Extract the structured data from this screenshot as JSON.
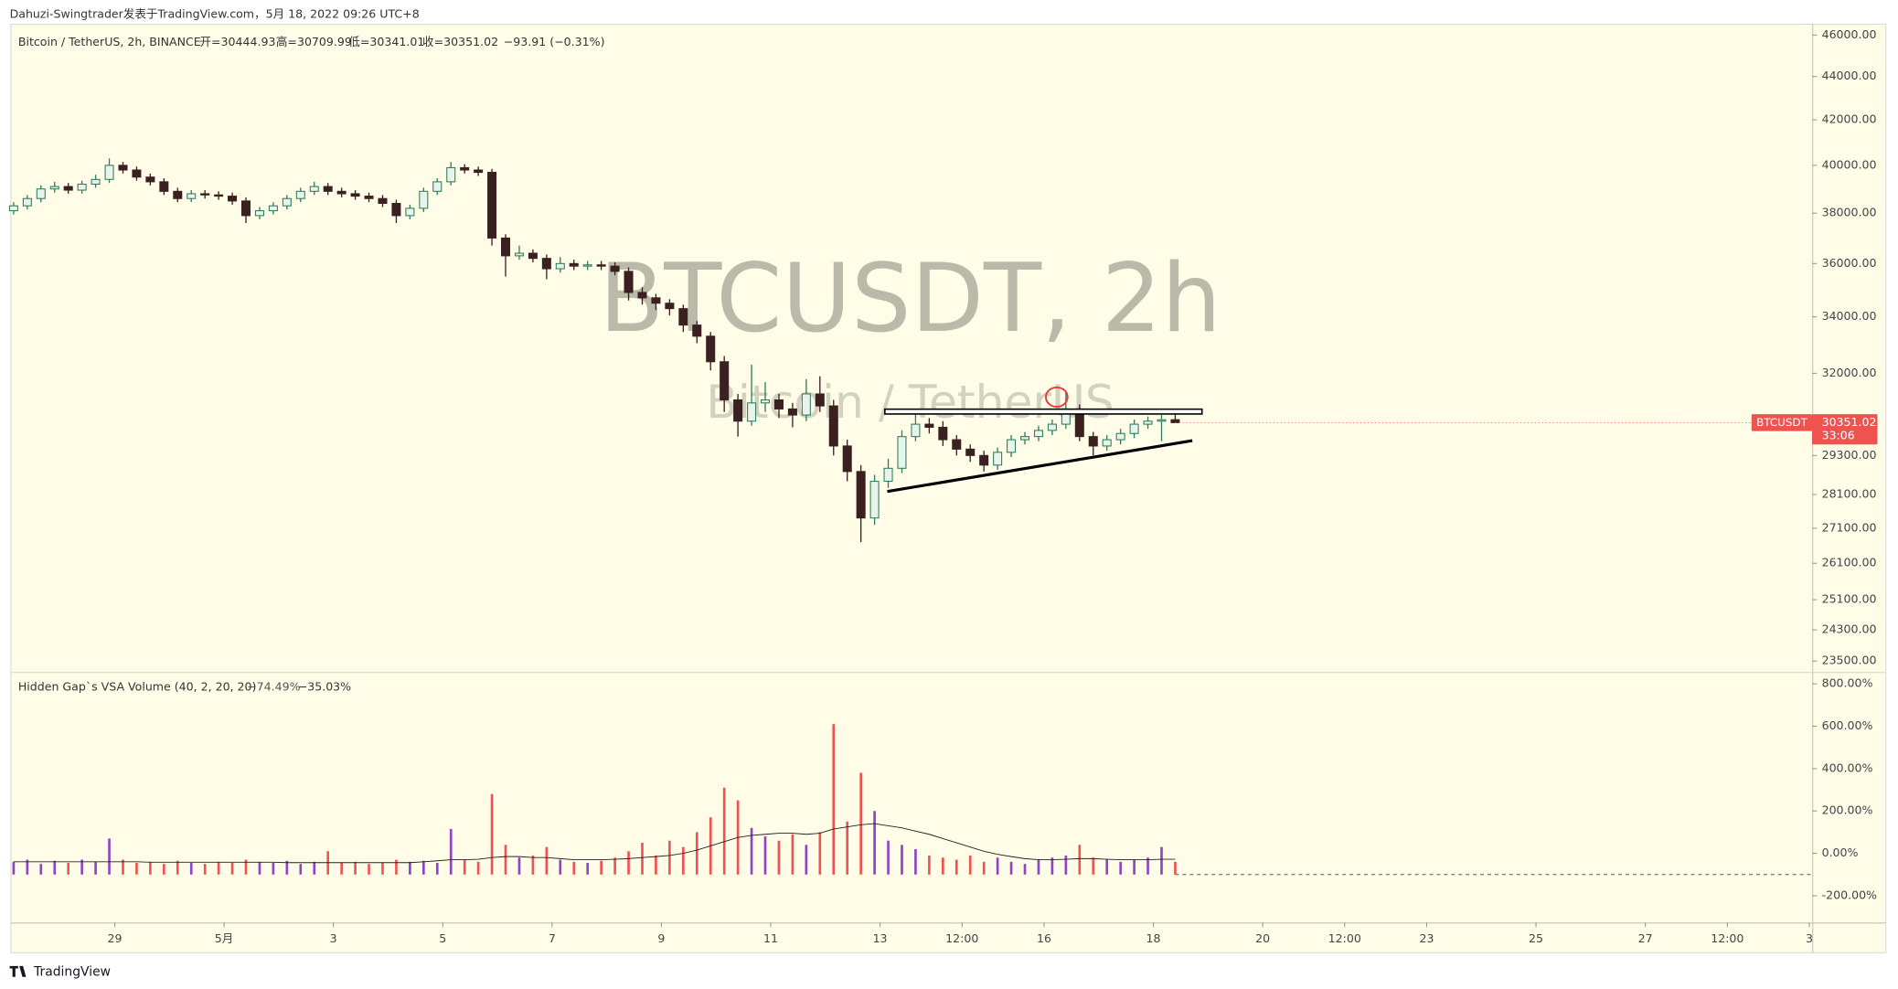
{
  "header": "Dahuzi-Swingtrader发表于TradingView.com，5月 18, 2022 09:26 UTC+8",
  "footer": "TradingView",
  "chart_data": {
    "type": "candlestick",
    "legend": {
      "symbol": "Bitcoin / TetherUS, 2h, BINANCE",
      "open": "开=30444.93",
      "high": "高=30709.99",
      "low": "低=30341.01",
      "close": "收=30351.02",
      "change": "−93.91 (−0.31%)"
    },
    "watermark": "BTCUSDT, 2h",
    "watermark_sub": "Bitcoin / TetherUS",
    "xlim": [
      0.1,
      33.05
    ],
    "xticks": [
      {
        "value": 2,
        "label": "29"
      },
      {
        "value": 4,
        "label": "5月"
      },
      {
        "value": 6,
        "label": "3"
      },
      {
        "value": 8,
        "label": "5"
      },
      {
        "value": 10,
        "label": "7"
      },
      {
        "value": 12,
        "label": "9"
      },
      {
        "value": 14,
        "label": "11"
      },
      {
        "value": 16,
        "label": "13"
      },
      {
        "value": 17.5,
        "label": "12:00"
      },
      {
        "value": 19,
        "label": "16"
      },
      {
        "value": 21,
        "label": "18"
      },
      {
        "value": 23,
        "label": "20"
      },
      {
        "value": 24.5,
        "label": "12:00"
      },
      {
        "value": 26,
        "label": "23"
      },
      {
        "value": 28,
        "label": "25"
      },
      {
        "value": 30,
        "label": "27"
      },
      {
        "value": 31.5,
        "label": "12:00"
      },
      {
        "value": 33,
        "label": "3"
      }
    ],
    "ylim": [
      23230,
      46540
    ],
    "log": true,
    "grid": false,
    "yticks": [
      {
        "value": 46000,
        "label": "46000.00"
      },
      {
        "value": 44000,
        "label": "44000.00"
      },
      {
        "value": 42000,
        "label": "42000.00"
      },
      {
        "value": 40000,
        "label": "40000.00"
      },
      {
        "value": 38000,
        "label": "38000.00"
      },
      {
        "value": 36000,
        "label": "36000.00"
      },
      {
        "value": 34000,
        "label": "34000.00"
      },
      {
        "value": 32000,
        "label": "32000.00"
      },
      {
        "value": 29300,
        "label": "29300.00"
      },
      {
        "value": 28100,
        "label": "28100.00"
      },
      {
        "value": 27100,
        "label": "27100.00"
      },
      {
        "value": 26100,
        "label": "26100.00"
      },
      {
        "value": 25100,
        "label": "25100.00"
      },
      {
        "value": 24300,
        "label": "24300.00"
      },
      {
        "value": 23500,
        "label": "23500.00"
      }
    ],
    "up_color": "#2e7d5b",
    "down_color": "#3a2020",
    "candles": [
      [
        0.15,
        38100,
        38450,
        37950,
        38300
      ],
      [
        0.4,
        38300,
        38750,
        38150,
        38600
      ],
      [
        0.65,
        38600,
        39150,
        38450,
        39000
      ],
      [
        0.9,
        39000,
        39300,
        38850,
        39100
      ],
      [
        1.15,
        39100,
        39250,
        38800,
        38950
      ],
      [
        1.4,
        38950,
        39350,
        38800,
        39200
      ],
      [
        1.65,
        39200,
        39600,
        39050,
        39400
      ],
      [
        1.9,
        39400,
        40300,
        39250,
        40000
      ],
      [
        2.15,
        40000,
        40150,
        39650,
        39800
      ],
      [
        2.4,
        39800,
        39950,
        39350,
        39500
      ],
      [
        2.65,
        39500,
        39650,
        39150,
        39300
      ],
      [
        2.9,
        39300,
        39450,
        38750,
        38900
      ],
      [
        3.15,
        38900,
        39050,
        38450,
        38600
      ],
      [
        3.4,
        38600,
        38950,
        38450,
        38800
      ],
      [
        3.65,
        38800,
        38950,
        38600,
        38750
      ],
      [
        3.9,
        38750,
        38900,
        38550,
        38700
      ],
      [
        4.15,
        38700,
        38850,
        38350,
        38500
      ],
      [
        4.4,
        38500,
        38650,
        37600,
        37900
      ],
      [
        4.65,
        37900,
        38250,
        37750,
        38100
      ],
      [
        4.9,
        38100,
        38450,
        37950,
        38300
      ],
      [
        5.15,
        38300,
        38750,
        38150,
        38600
      ],
      [
        5.4,
        38600,
        39050,
        38450,
        38900
      ],
      [
        5.65,
        38900,
        39300,
        38750,
        39100
      ],
      [
        5.9,
        39100,
        39250,
        38750,
        38900
      ],
      [
        6.15,
        38900,
        39050,
        38650,
        38800
      ],
      [
        6.4,
        38800,
        38950,
        38550,
        38700
      ],
      [
        6.65,
        38700,
        38850,
        38450,
        38600
      ],
      [
        6.9,
        38600,
        38750,
        38250,
        38400
      ],
      [
        7.15,
        38400,
        38550,
        37600,
        37900
      ],
      [
        7.4,
        37900,
        38350,
        37750,
        38200
      ],
      [
        7.65,
        38200,
        39050,
        38050,
        38900
      ],
      [
        7.9,
        38900,
        39450,
        38750,
        39300
      ],
      [
        8.15,
        39300,
        40150,
        39150,
        39900
      ],
      [
        8.4,
        39900,
        40050,
        39650,
        39800
      ],
      [
        8.65,
        39800,
        39950,
        39550,
        39700
      ],
      [
        8.9,
        39700,
        39850,
        36700,
        37000
      ],
      [
        9.15,
        37000,
        37150,
        35500,
        36300
      ],
      [
        9.4,
        36300,
        36700,
        36150,
        36400
      ],
      [
        9.65,
        36400,
        36550,
        36050,
        36200
      ],
      [
        9.9,
        36200,
        36350,
        35400,
        35800
      ],
      [
        10.15,
        35800,
        36250,
        35650,
        36000
      ],
      [
        10.4,
        36000,
        36150,
        35750,
        35900
      ],
      [
        10.65,
        35900,
        36100,
        35750,
        35950
      ],
      [
        10.9,
        35950,
        36100,
        35750,
        35900
      ],
      [
        11.15,
        35900,
        36050,
        35550,
        35700
      ],
      [
        11.4,
        35700,
        35850,
        34600,
        34900
      ],
      [
        11.65,
        34900,
        35100,
        34450,
        34700
      ],
      [
        11.9,
        34700,
        34850,
        34250,
        34500
      ],
      [
        12.15,
        34500,
        34650,
        34050,
        34300
      ],
      [
        12.4,
        34300,
        34450,
        33450,
        33700
      ],
      [
        12.65,
        33700,
        33850,
        33050,
        33300
      ],
      [
        12.9,
        33300,
        33450,
        32100,
        32400
      ],
      [
        13.15,
        32400,
        32600,
        30700,
        31100
      ],
      [
        13.4,
        31100,
        31300,
        29900,
        30400
      ],
      [
        13.65,
        30400,
        32300,
        30250,
        31000
      ],
      [
        13.9,
        31000,
        31700,
        30700,
        31100
      ],
      [
        14.15,
        31100,
        31300,
        30500,
        30800
      ],
      [
        14.4,
        30800,
        31000,
        30200,
        30600
      ],
      [
        14.65,
        30600,
        31800,
        30400,
        31300
      ],
      [
        14.9,
        31300,
        31900,
        30700,
        30900
      ],
      [
        15.15,
        30900,
        31100,
        29300,
        29600
      ],
      [
        15.4,
        29600,
        29800,
        28500,
        28800
      ],
      [
        15.65,
        28800,
        29000,
        26700,
        27400
      ],
      [
        15.9,
        27400,
        28700,
        27200,
        28500
      ],
      [
        16.15,
        28500,
        29200,
        28300,
        28900
      ],
      [
        16.4,
        28900,
        30100,
        28750,
        29900
      ],
      [
        16.65,
        29900,
        30700,
        29750,
        30300
      ],
      [
        16.9,
        30300,
        30500,
        30000,
        30200
      ],
      [
        17.15,
        30200,
        30400,
        29600,
        29800
      ],
      [
        17.4,
        29800,
        29950,
        29300,
        29500
      ],
      [
        17.65,
        29500,
        29650,
        29100,
        29300
      ],
      [
        17.9,
        29300,
        29450,
        28800,
        29000
      ],
      [
        18.15,
        29000,
        29550,
        28850,
        29400
      ],
      [
        18.4,
        29400,
        29950,
        29250,
        29800
      ],
      [
        18.65,
        29800,
        30050,
        29650,
        29900
      ],
      [
        18.9,
        29900,
        30250,
        29750,
        30100
      ],
      [
        19.15,
        30100,
        30450,
        29950,
        30300
      ],
      [
        19.4,
        30300,
        31400,
        30150,
        30800
      ],
      [
        19.65,
        30800,
        30950,
        29750,
        29900
      ],
      [
        19.9,
        29900,
        30050,
        29300,
        29600
      ],
      [
        20.15,
        29600,
        29950,
        29450,
        29800
      ],
      [
        20.4,
        29800,
        30150,
        29650,
        30000
      ],
      [
        20.65,
        30000,
        30450,
        29850,
        30300
      ],
      [
        20.9,
        30300,
        30550,
        30150,
        30400
      ],
      [
        21.15,
        30400,
        30600,
        29750,
        30444.93
      ],
      [
        21.4,
        30444.93,
        30709.99,
        30341.01,
        30351.02
      ]
    ],
    "last_price": {
      "symbol": "BTCUSDT",
      "value": 30351.02,
      "countdown": "33:06",
      "color": "#ef5350"
    },
    "volume": {
      "title": "Hidden Gap`s VSA Volume (40, 2, 20, 20)",
      "stat1": "−74.49%",
      "stat2": "−35.03%",
      "ylim": [
        -326,
        851
      ],
      "yticks": [
        {
          "value": 800,
          "label": "800.00%"
        },
        {
          "value": 600,
          "label": "600.00%"
        },
        {
          "value": 400,
          "label": "400.00%"
        },
        {
          "value": 200,
          "label": "200.00%"
        },
        {
          "value": 0,
          "label": "0.00%"
        },
        {
          "value": -200,
          "label": "-200.00%"
        }
      ],
      "base": -100,
      "up_color": "#8e44c4",
      "down_color": "#ef5350",
      "ma_color": "#222222",
      "values": [
        -40,
        -30,
        -50,
        -35,
        -45,
        -30,
        -40,
        70,
        -30,
        -45,
        -40,
        -50,
        -35,
        -45,
        -50,
        -40,
        -45,
        -30,
        -40,
        -45,
        -35,
        -50,
        -40,
        10,
        -45,
        -40,
        -50,
        -45,
        -30,
        -40,
        -35,
        -45,
        115,
        -30,
        -40,
        280,
        40,
        -20,
        -10,
        30,
        -30,
        -40,
        -45,
        -35,
        -20,
        10,
        50,
        -10,
        60,
        30,
        100,
        170,
        310,
        250,
        120,
        80,
        60,
        90,
        40,
        100,
        610,
        150,
        380,
        200,
        60,
        40,
        20,
        -10,
        -20,
        -30,
        -10,
        -40,
        -20,
        -40,
        -50,
        -30,
        -20,
        -10,
        40,
        -20,
        -30,
        -40,
        -30,
        -20,
        30,
        -40
      ],
      "ma": [
        -40,
        -40,
        -40,
        -40,
        -40,
        -40,
        -40,
        -40,
        -40,
        -40,
        -42,
        -42,
        -42,
        -42,
        -42,
        -42,
        -42,
        -42,
        -42,
        -42,
        -44,
        -44,
        -44,
        -44,
        -44,
        -44,
        -44,
        -44,
        -44,
        -44,
        -40,
        -35,
        -30,
        -30,
        -28,
        -20,
        -15,
        -15,
        -20,
        -20,
        -25,
        -30,
        -30,
        -30,
        -28,
        -25,
        -20,
        -15,
        -10,
        0,
        15,
        35,
        55,
        75,
        85,
        90,
        95,
        95,
        90,
        95,
        115,
        125,
        135,
        140,
        130,
        120,
        105,
        90,
        70,
        50,
        30,
        10,
        -5,
        -15,
        -25,
        -30,
        -30,
        -28,
        -25,
        -25,
        -28,
        -30,
        -30,
        -30,
        -28,
        -28
      ]
    }
  }
}
